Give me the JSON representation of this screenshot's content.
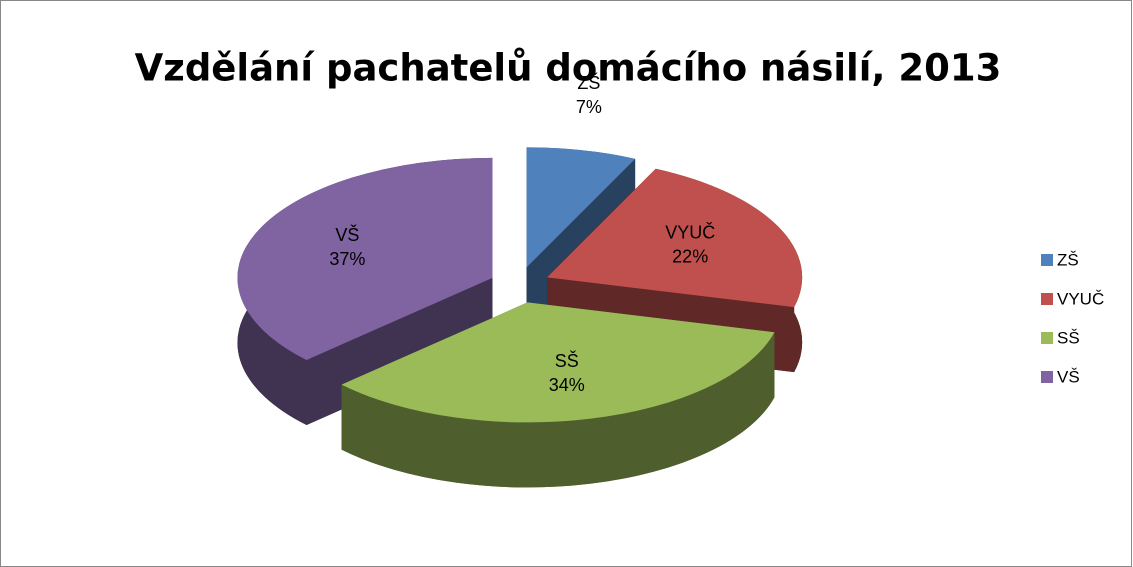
{
  "chart_data": {
    "type": "pie3d",
    "title": "Vzdělání  pachatelů domácího násilí, 2013",
    "categories": [
      "ZŠ",
      "VYUČ",
      "SŠ",
      "VŠ"
    ],
    "values": [
      7,
      22,
      34,
      37
    ],
    "value_labels": [
      "7%",
      "22%",
      "34%",
      "37%"
    ],
    "colors": [
      "#4f81bd",
      "#c0504d",
      "#9bbb59",
      "#8064a2"
    ],
    "legend": "right"
  }
}
